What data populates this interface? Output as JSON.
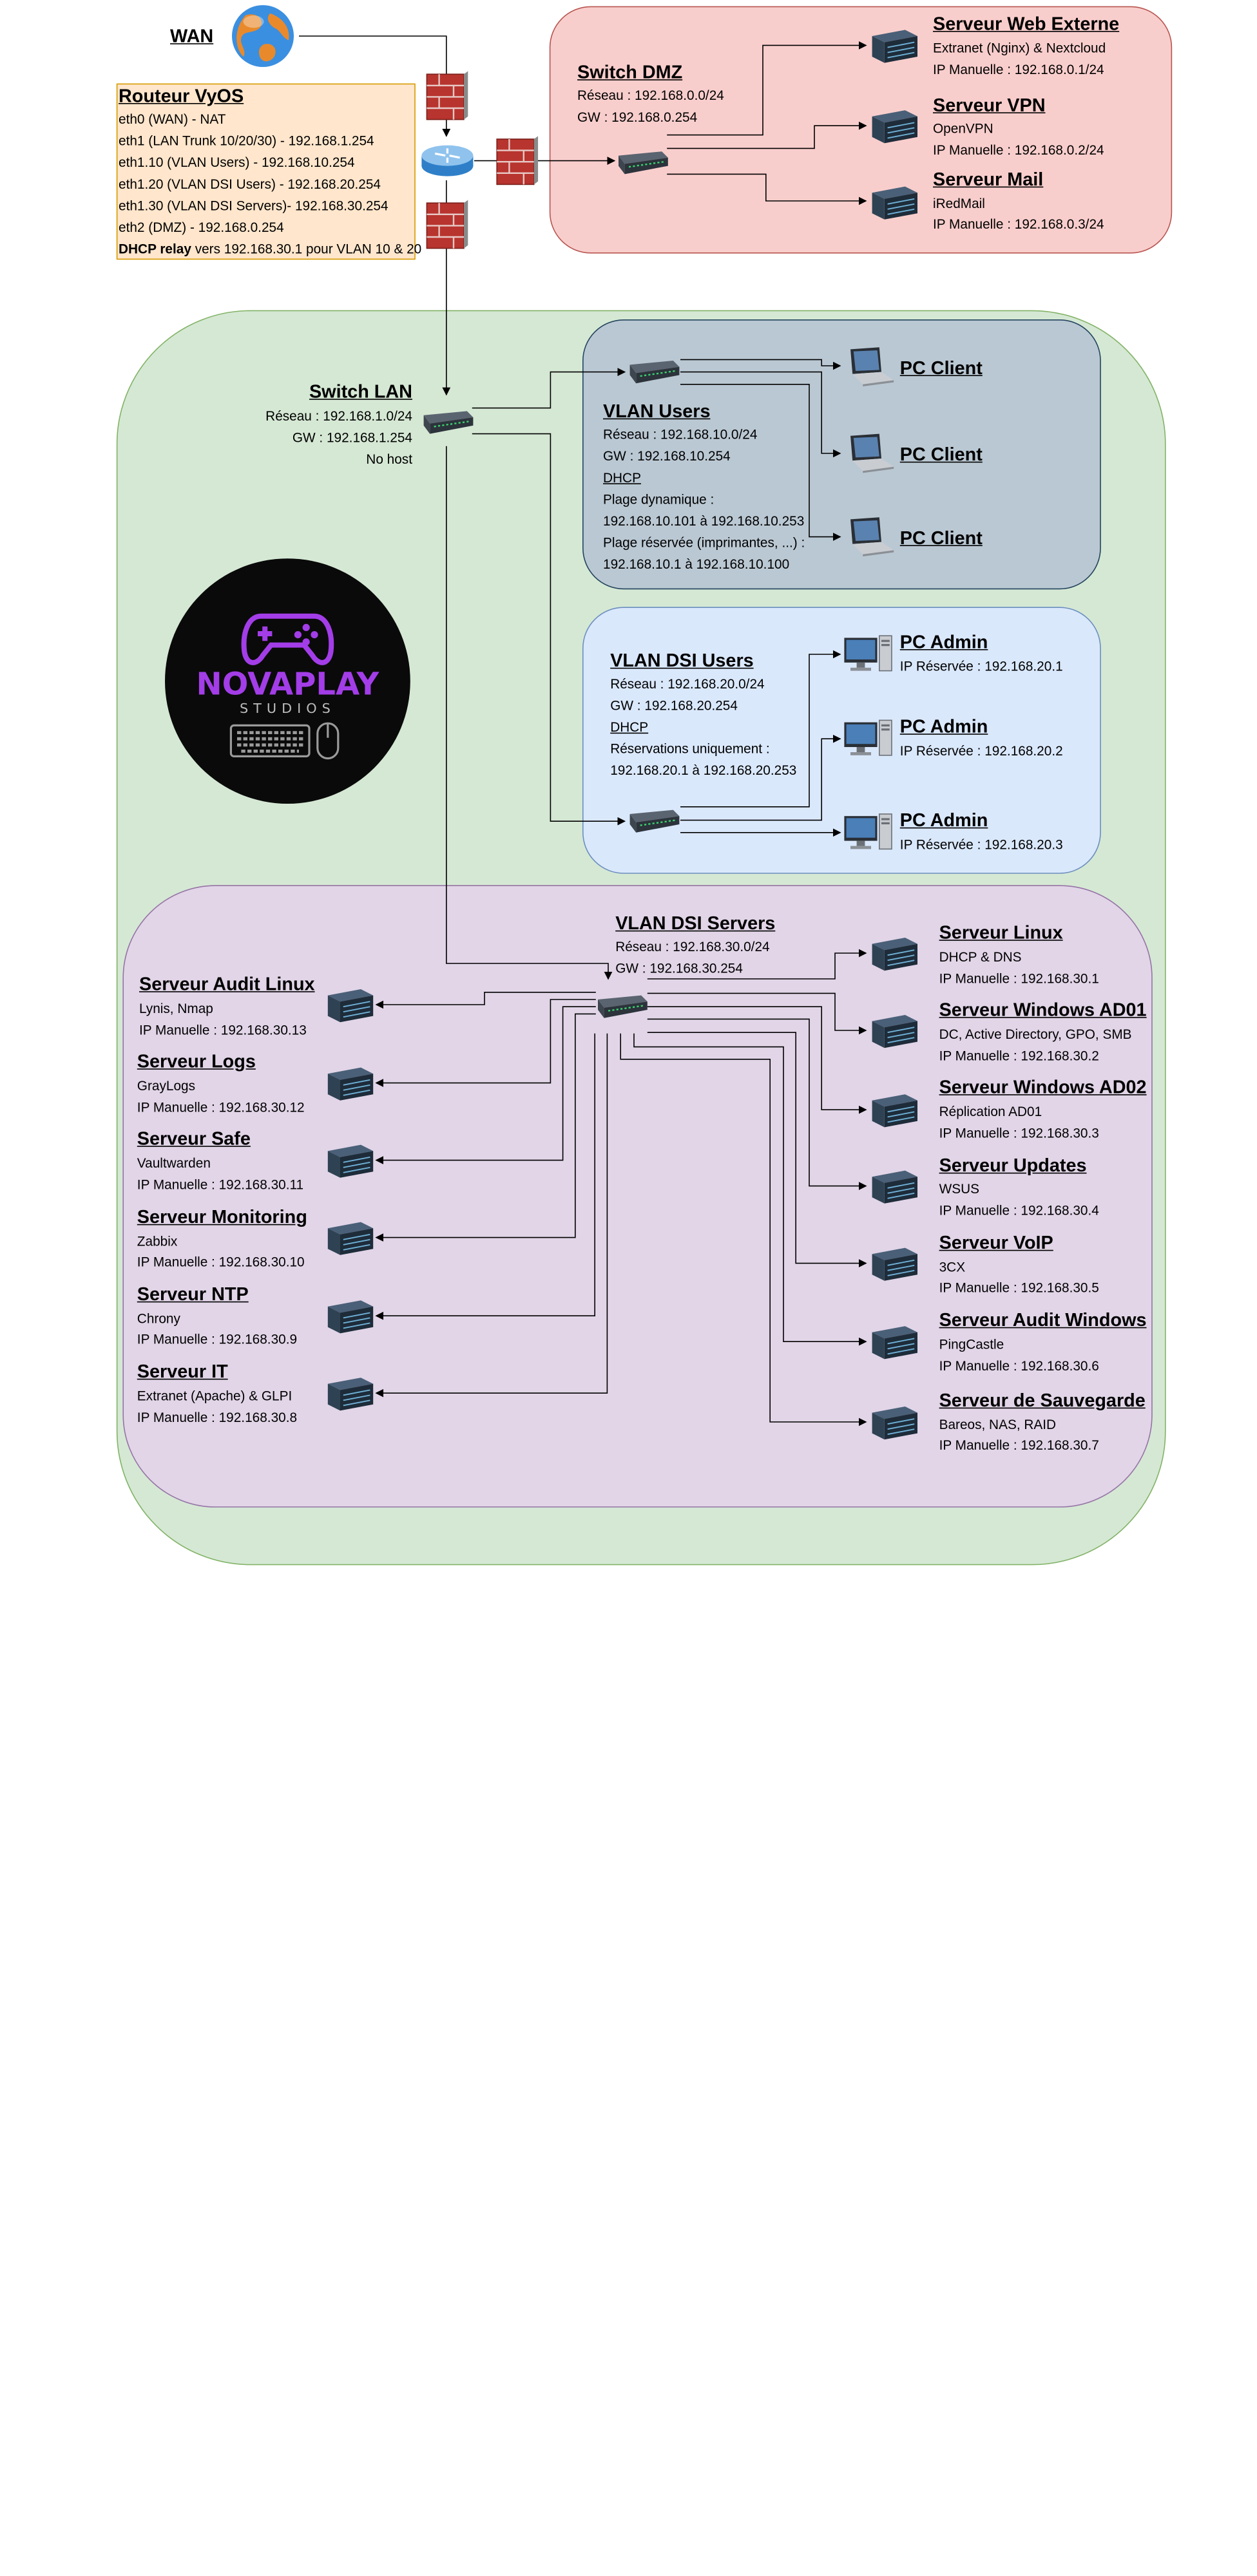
{
  "wan": {
    "label": "WAN"
  },
  "router": {
    "title": "Routeur VyOS",
    "lines": [
      "eth0 (WAN) - NAT",
      "eth1 (LAN Trunk 10/20/30) - 192.168.1.254",
      "eth1.10 (VLAN Users) - 192.168.10.254",
      "eth1.20 (VLAN DSI Users) - 192.168.20.254",
      "eth1.30 (VLAN DSI Servers)- 192.168.30.254",
      "eth2 (DMZ) - 192.168.0.254"
    ],
    "dhcp_bold": "DHCP relay",
    "dhcp_rest": " vers 192.168.30.1 pour VLAN 10 & 20"
  },
  "dmz": {
    "title": "Switch DMZ",
    "lines": [
      "Réseau : 192.168.0.0/24",
      "GW : 192.168.0.254"
    ],
    "servers": [
      {
        "title": "Serveur Web Externe",
        "desc": "Extranet (Nginx) & Nextcloud",
        "ip": "IP Manuelle : 192.168.0.1/24"
      },
      {
        "title": "Serveur VPN",
        "desc": "OpenVPN",
        "ip": "IP Manuelle : 192.168.0.2/24"
      },
      {
        "title": "Serveur Mail",
        "desc": "iRedMail",
        "ip": "IP Manuelle : 192.168.0.3/24"
      }
    ]
  },
  "lan": {
    "title": "Switch LAN",
    "lines": [
      "Réseau : 192.168.1.0/24",
      "GW : 192.168.1.254",
      "No host"
    ]
  },
  "vlan_users": {
    "title": "VLAN Users",
    "network": "Réseau : 192.168.10.0/24",
    "gw": "GW : 192.168.10.254",
    "dhcp": "DHCP",
    "lines": [
      "Plage dynamique :",
      "192.168.10.101 à 192.168.10.253",
      "Plage réservée (imprimantes, ...) :",
      "192.168.10.1 à 192.168.10.100"
    ],
    "clients": [
      "PC Client",
      "PC Client",
      "PC Client"
    ]
  },
  "vlan_dsi_users": {
    "title": "VLAN DSI Users",
    "network": "Réseau : 192.168.20.0/24",
    "gw": "GW : 192.168.20.254",
    "dhcp": "DHCP",
    "lines": [
      "Réservations uniquement :",
      "192.168.20.1 à 192.168.20.253"
    ],
    "admins": [
      {
        "title": "PC Admin",
        "ip": "IP Réservée : 192.168.20.1"
      },
      {
        "title": "PC Admin",
        "ip": "IP Réservée : 192.168.20.2"
      },
      {
        "title": "PC Admin",
        "ip": "IP Réservée : 192.168.20.3"
      }
    ]
  },
  "logo": {
    "line1": "NovaPlay",
    "line2": "STUDIOS"
  },
  "vlan_dsi_servers": {
    "title": "VLAN DSI Servers",
    "network": "Réseau : 192.168.30.0/24",
    "gw": "GW : 192.168.30.254",
    "left": [
      {
        "title": "Serveur Audit Linux",
        "desc": "Lynis, Nmap",
        "ip": "IP Manuelle : 192.168.30.13"
      },
      {
        "title": "Serveur Logs",
        "desc": "GrayLogs",
        "ip": "IP Manuelle : 192.168.30.12"
      },
      {
        "title": "Serveur Safe",
        "desc": "Vaultwarden",
        "ip": "IP Manuelle : 192.168.30.11"
      },
      {
        "title": "Serveur Monitoring",
        "desc": "Zabbix",
        "ip": "IP Manuelle : 192.168.30.10"
      },
      {
        "title": "Serveur NTP",
        "desc": "Chrony",
        "ip": "IP Manuelle : 192.168.30.9"
      },
      {
        "title": "Serveur IT",
        "desc": "Extranet (Apache) & GLPI",
        "ip": "IP Manuelle : 192.168.30.8"
      }
    ],
    "right": [
      {
        "title": "Serveur Linux",
        "desc": "DHCP & DNS",
        "ip": "IP Manuelle : 192.168.30.1"
      },
      {
        "title": "Serveur Windows AD01",
        "desc": "DC, Active Directory, GPO, SMB",
        "ip": "IP Manuelle : 192.168.30.2"
      },
      {
        "title": "Serveur Windows AD02",
        "desc": "Réplication AD01",
        "ip": "IP Manuelle : 192.168.30.3"
      },
      {
        "title": "Serveur Updates",
        "desc": "WSUS",
        "ip": "IP Manuelle : 192.168.30.4"
      },
      {
        "title": "Serveur VoIP",
        "desc": "3CX",
        "ip": "IP Manuelle : 192.168.30.5"
      },
      {
        "title": "Serveur Audit Windows",
        "desc": "PingCastle",
        "ip": "IP Manuelle : 192.168.30.6"
      },
      {
        "title": "Serveur de Sauvegarde",
        "desc": "Bareos, NAS, RAID",
        "ip": "IP Manuelle : 192.168.30.7"
      }
    ]
  },
  "colors": {
    "dmz_fill": "#f8cecc",
    "dmz_border": "#b85450",
    "lan_fill": "#d5e8d4",
    "lan_border": "#82b366",
    "users_fill": "#bac8d3",
    "users_border": "#23445d",
    "dsi_users_fill": "#dae8fc",
    "dsi_users_border": "#6c8ebf",
    "servers_fill": "#e1d5e7",
    "servers_border": "#9673a6",
    "router_fill": "#ffe6cc",
    "router_border": "#d79b00",
    "logo_purple": "#a33de8"
  }
}
